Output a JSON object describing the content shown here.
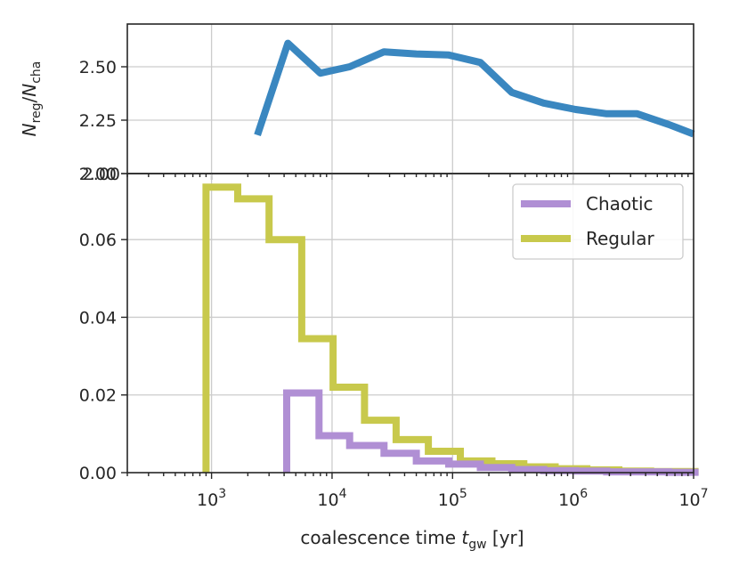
{
  "chart_data": [
    {
      "type": "line",
      "panel": "top",
      "ylabel": "N_reg/N_cha",
      "ylabel_parts": {
        "n1": "N",
        "sub1": "reg",
        "slash": "/",
        "n2": "N",
        "sub2": "cha"
      },
      "ylim": [
        2.0,
        2.7
      ],
      "yticks": [
        2.0,
        2.25,
        2.5
      ],
      "ytick_labels": [
        "2.00",
        "2.25",
        "2.50"
      ],
      "xscale": "log",
      "grid": true,
      "color": "#3a87c0",
      "series": [
        {
          "name": "ratio",
          "x": [
            2400,
            4300,
            8000,
            14000,
            27000,
            50000,
            93000,
            170000,
            310000,
            570000,
            1050000,
            1900000,
            3400000,
            6200000,
            10000000
          ],
          "y": [
            2.18,
            2.61,
            2.47,
            2.5,
            2.57,
            2.56,
            2.555,
            2.52,
            2.38,
            2.33,
            2.3,
            2.28,
            2.28,
            2.23,
            2.185
          ]
        }
      ]
    },
    {
      "type": "step",
      "panel": "bottom",
      "xlabel": "coalescence time t_gw [yr]",
      "xlabel_parts": {
        "main": "coalescence time ",
        "t": "t",
        "sub": "gw",
        "unit": " [yr]"
      },
      "xscale": "log",
      "xlim": [
        200,
        10000000
      ],
      "xticks": [
        1000,
        10000,
        100000,
        1000000,
        10000000
      ],
      "xtick_labels": [
        {
          "base": "10",
          "exp": "3"
        },
        {
          "base": "10",
          "exp": "4"
        },
        {
          "base": "10",
          "exp": "5"
        },
        {
          "base": "10",
          "exp": "6"
        },
        {
          "base": "10",
          "exp": "7"
        }
      ],
      "ylim": [
        0.0,
        0.077
      ],
      "yticks": [
        0.0,
        0.02,
        0.04,
        0.06
      ],
      "ytick_labels": [
        "0.00",
        "0.02",
        "0.04",
        "0.06"
      ],
      "top_tick_label": "2.00",
      "grid": true,
      "legend_position": "upper-right",
      "series": [
        {
          "name": "Chaotic",
          "color": "#b08fd4",
          "edges": [
            4200,
            7800,
            14000,
            27000,
            50000,
            93000,
            170000,
            310000,
            570000,
            1050000,
            1900000,
            3400000,
            6200000,
            11000000
          ],
          "values": [
            0.0205,
            0.0095,
            0.007,
            0.005,
            0.003,
            0.0022,
            0.0013,
            0.0008,
            0.0005,
            0.0004,
            0.0002,
            0.0002,
            0.0001
          ]
        },
        {
          "name": "Regular",
          "color": "#c8c94c",
          "edges": [
            900,
            1650,
            3000,
            5600,
            10200,
            18600,
            34000,
            63000,
            116000,
            212000,
            390000,
            710000,
            1300000,
            2400000,
            4400000,
            11000000
          ],
          "values": [
            0.0735,
            0.0705,
            0.06,
            0.0345,
            0.022,
            0.0135,
            0.0085,
            0.0055,
            0.003,
            0.0023,
            0.0015,
            0.001,
            0.0007,
            0.0004,
            0.0003
          ]
        }
      ]
    }
  ]
}
